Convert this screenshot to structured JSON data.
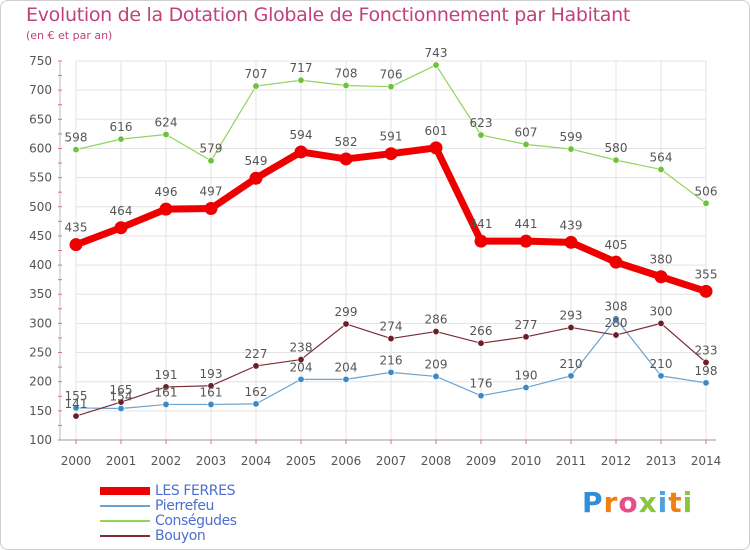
{
  "title": "Evolution de la Dotation Globale de Fonctionnement par Habitant",
  "subtitle": "(en € et par an)",
  "logo": {
    "letters": [
      "P",
      "r",
      "o",
      "x",
      "i",
      "t",
      "i"
    ],
    "colors": [
      "#2f8fd8",
      "#f07f16",
      "#e84c8a",
      "#8bc53f",
      "#4da3e0",
      "#f07f16",
      "#8bc53f"
    ]
  },
  "colors": {
    "title": "#c0427a",
    "axis": "#555555",
    "grid": "#e3e3e3",
    "tick_mark": "#e06b9a",
    "legend_text": "#4d6fd0"
  },
  "chart_data": {
    "type": "line",
    "x": [
      "2000",
      "2001",
      "2002",
      "2003",
      "2004",
      "2005",
      "2006",
      "2007",
      "2008",
      "2009",
      "2010",
      "2011",
      "2012",
      "2013",
      "2014"
    ],
    "ylim": [
      100,
      750
    ],
    "yticks": [
      100,
      150,
      200,
      250,
      300,
      350,
      400,
      450,
      500,
      550,
      600,
      650,
      700,
      750
    ],
    "grid": true,
    "legend_position": "bottom-left",
    "series": [
      {
        "name": "LES FERRES",
        "color": "#ee0000",
        "marker": "#ee0000",
        "width": 7,
        "r": 6.5,
        "values": [
          435,
          464,
          496,
          497,
          549,
          594,
          582,
          591,
          601,
          441,
          441,
          439,
          405,
          380,
          355
        ]
      },
      {
        "name": "Pierrefeu",
        "color": "#6aa3d2",
        "marker": "#3d89c8",
        "width": 1.2,
        "r": 3.2,
        "values": [
          155,
          154,
          161,
          161,
          162,
          204,
          204,
          216,
          209,
          176,
          190,
          210,
          308,
          210,
          198
        ]
      },
      {
        "name": "Conségudes",
        "color": "#90d45a",
        "marker": "#6cc23a",
        "width": 1.2,
        "r": 3.2,
        "values": [
          598,
          616,
          624,
          579,
          707,
          717,
          708,
          706,
          743,
          623,
          607,
          599,
          580,
          564,
          506
        ]
      },
      {
        "name": "Bouyon",
        "color": "#7b2e38",
        "marker": "#6a1e28",
        "width": 1.2,
        "r": 3.2,
        "values": [
          141,
          165,
          191,
          193,
          227,
          238,
          299,
          274,
          286,
          266,
          277,
          293,
          280,
          300,
          233
        ]
      }
    ]
  }
}
